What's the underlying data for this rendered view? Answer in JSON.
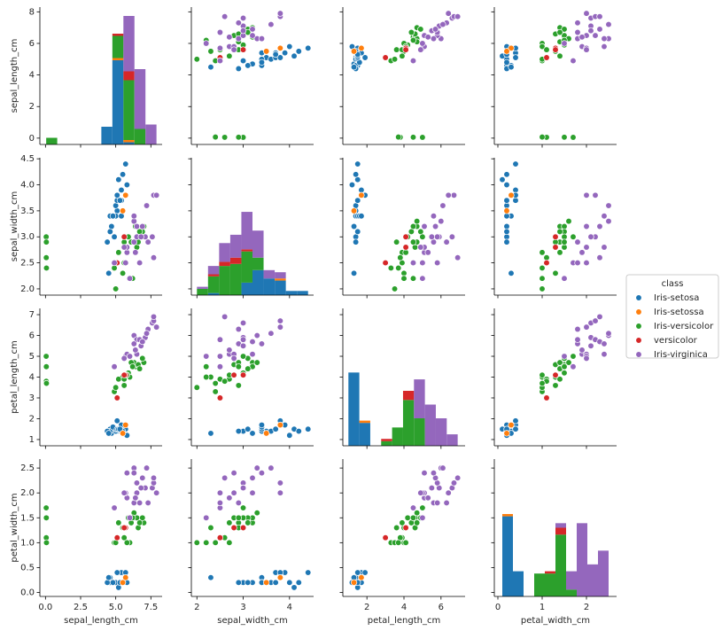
{
  "chart_data": {
    "type": "pairplot",
    "legend_title": "class",
    "legend": "right",
    "axes": [
      {
        "label": "sepal_length_cm",
        "lim": [
          -0.4,
          8.3
        ],
        "xticks": [
          {
            "value": 0,
            "label": "0.0"
          },
          2.5,
          {
            "value": 5,
            "label": "5.0"
          },
          7.5
        ],
        "yticks": [
          0,
          2,
          4,
          6,
          8
        ]
      },
      {
        "label": "sepal_width_cm",
        "lim": [
          1.88,
          4.52
        ],
        "xticks": [
          2,
          3,
          4
        ],
        "yticks": [
          {
            "value": 2,
            "label": "2.0"
          },
          2.5,
          {
            "value": 3,
            "label": "3.0"
          },
          3.5,
          {
            "value": 4,
            "label": "4.0"
          },
          4.5
        ]
      },
      {
        "label": "petal_length_cm",
        "lim": [
          0.7,
          7.3
        ],
        "xticks": [
          2,
          4,
          6
        ],
        "yticks": [
          1,
          2,
          3,
          4,
          5,
          6,
          7
        ]
      },
      {
        "label": "petal_width_cm",
        "lim": [
          -0.08,
          2.68
        ],
        "xticks": [
          0,
          1,
          2
        ],
        "yticks": [
          {
            "value": 0,
            "label": "0.0"
          },
          0.5,
          {
            "value": 1,
            "label": "1.0"
          },
          1.5,
          {
            "value": 2,
            "label": "2.0"
          },
          2.5
        ]
      }
    ],
    "hist_bins": [
      [
        0.05,
        0.835,
        1.62,
        2.405,
        3.19,
        3.975,
        4.76,
        5.545,
        6.33,
        7.115,
        7.9
      ],
      [
        2.0,
        2.24,
        2.48,
        2.72,
        2.96,
        3.2,
        3.44,
        3.68,
        3.92,
        4.16,
        4.4
      ],
      [
        1.0,
        1.59,
        2.18,
        2.77,
        3.36,
        3.95,
        4.54,
        5.13,
        5.72,
        6.31,
        6.9
      ],
      [
        0.1,
        0.34,
        0.58,
        0.82,
        1.06,
        1.3,
        1.54,
        1.78,
        2.02,
        2.26,
        2.5
      ]
    ],
    "hist_count_lims": [
      [
        0,
        62
      ],
      [
        0,
        66
      ],
      [
        0,
        60
      ],
      [
        0,
        60
      ]
    ],
    "series": [
      {
        "name": "Iris-setosa",
        "color": "#1f77b4",
        "hist": [
          [
            0,
            0,
            0,
            0,
            0,
            8,
            38,
            1,
            0,
            0
          ],
          [
            0,
            1,
            0,
            0,
            6,
            12,
            8,
            7,
            2,
            2
          ],
          [
            32,
            10,
            0,
            0,
            0,
            0,
            0,
            0,
            0,
            0
          ],
          [
            35,
            11,
            0,
            0,
            0,
            0,
            0,
            0,
            0,
            0
          ]
        ],
        "points": [
          [
            5.1,
            3.5,
            1.4,
            0.2
          ],
          [
            4.9,
            3.0,
            1.4,
            0.2
          ],
          [
            4.7,
            3.2,
            1.3,
            0.2
          ],
          [
            4.6,
            3.1,
            1.5,
            0.2
          ],
          [
            5.0,
            3.6,
            1.4,
            0.2
          ],
          [
            5.4,
            3.9,
            1.7,
            0.4
          ],
          [
            4.6,
            3.4,
            1.4,
            0.3
          ],
          [
            5.0,
            3.4,
            1.5,
            0.2
          ],
          [
            4.4,
            2.9,
            1.4,
            0.2
          ],
          [
            5.4,
            3.7,
            1.5,
            0.2
          ],
          [
            4.8,
            3.4,
            1.6,
            0.2
          ],
          [
            5.8,
            4.0,
            1.2,
            0.2
          ],
          [
            5.7,
            4.4,
            1.5,
            0.4
          ],
          [
            5.4,
            3.4,
            1.7,
            0.2
          ],
          [
            5.1,
            3.7,
            1.5,
            0.4
          ],
          [
            5.2,
            4.1,
            1.5,
            0.1
          ],
          [
            5.5,
            4.2,
            1.4,
            0.2
          ],
          [
            4.5,
            2.3,
            1.3,
            0.3
          ],
          [
            5.1,
            3.8,
            1.9,
            0.4
          ],
          [
            5.3,
            3.7,
            1.5,
            0.2
          ]
        ]
      },
      {
        "name": "Iris-setossa",
        "color": "#ff7f0e",
        "hist": [
          [
            0,
            0,
            0,
            0,
            0,
            0,
            1,
            1,
            0,
            0
          ],
          [
            0,
            0,
            0,
            0,
            0,
            0,
            0,
            1,
            0,
            0
          ],
          [
            0,
            1,
            0,
            0,
            0,
            0,
            0,
            0,
            0,
            0
          ],
          [
            1,
            0,
            0,
            0,
            0,
            0,
            0,
            0,
            0,
            0
          ]
        ],
        "points": [
          [
            5.7,
            3.8,
            1.7,
            0.3
          ],
          [
            5.5,
            3.5,
            1.3,
            0.2
          ]
        ]
      },
      {
        "name": "Iris-versicolor",
        "color": "#2ca02c",
        "hist": [
          [
            3,
            0,
            0,
            0,
            0,
            0,
            10,
            27,
            7,
            0
          ],
          [
            3,
            8,
            14,
            15,
            15,
            6,
            0,
            0,
            0,
            0
          ],
          [
            0,
            0,
            0,
            2,
            8,
            20,
            12,
            0,
            0,
            0
          ],
          [
            0,
            0,
            0,
            10,
            10,
            27,
            3,
            0,
            0,
            0
          ]
        ],
        "points": [
          [
            7.0,
            3.2,
            4.7,
            1.4
          ],
          [
            6.4,
            3.2,
            4.5,
            1.5
          ],
          [
            6.9,
            3.1,
            4.9,
            1.5
          ],
          [
            5.5,
            2.3,
            4.0,
            1.3
          ],
          [
            6.5,
            2.8,
            4.6,
            1.5
          ],
          [
            6.3,
            3.3,
            4.7,
            1.6
          ],
          [
            4.9,
            2.4,
            3.3,
            1.0
          ],
          [
            6.6,
            2.9,
            4.6,
            1.3
          ],
          [
            5.2,
            2.7,
            3.9,
            1.4
          ],
          [
            5.0,
            2.0,
            3.5,
            1.0
          ],
          [
            5.9,
            3.0,
            4.2,
            1.5
          ],
          [
            6.0,
            2.2,
            4.0,
            1.0
          ],
          [
            6.1,
            2.9,
            4.7,
            1.4
          ],
          [
            5.6,
            2.9,
            3.6,
            1.3
          ],
          [
            6.7,
            3.1,
            4.4,
            1.4
          ],
          [
            5.8,
            2.7,
            4.1,
            1.0
          ],
          [
            6.2,
            2.2,
            4.5,
            1.5
          ],
          [
            5.6,
            2.5,
            3.9,
            1.1
          ],
          [
            0.05,
            3.0,
            5.0,
            1.7
          ],
          [
            0.06,
            2.9,
            4.5,
            1.5
          ],
          [
            0.055,
            2.6,
            3.8,
            1.1
          ],
          [
            0.07,
            2.4,
            3.7,
            1.0
          ]
        ]
      },
      {
        "name": "versicolor",
        "color": "#d62728",
        "hist": [
          [
            0,
            0,
            0,
            0,
            0,
            0,
            1,
            4,
            0,
            0
          ],
          [
            0,
            1,
            2,
            3,
            1,
            0,
            0,
            0,
            0,
            0
          ],
          [
            0,
            0,
            0,
            1,
            0,
            4,
            0,
            0,
            0,
            0
          ],
          [
            0,
            0,
            0,
            0,
            1,
            3,
            0,
            0,
            0,
            0
          ]
        ],
        "points": [
          [
            5.7,
            2.8,
            4.1,
            1.3
          ],
          [
            5.6,
            3.0,
            4.1,
            1.3
          ],
          [
            5.1,
            2.5,
            3.0,
            1.1
          ]
        ]
      },
      {
        "name": "Iris-virginica",
        "color": "#9467bd",
        "hist": [
          [
            0,
            0,
            0,
            0,
            0,
            0,
            0,
            25,
            27,
            9
          ],
          [
            1,
            4,
            9,
            11,
            18,
            13,
            4,
            3,
            0,
            0
          ],
          [
            0,
            0,
            0,
            0,
            0,
            0,
            17,
            18,
            12,
            5
          ],
          [
            0,
            0,
            0,
            0,
            0,
            2,
            8,
            32,
            14,
            20
          ]
        ],
        "points": [
          [
            6.3,
            3.3,
            6.0,
            2.5
          ],
          [
            5.8,
            2.7,
            5.1,
            1.9
          ],
          [
            7.1,
            3.0,
            5.9,
            2.1
          ],
          [
            6.3,
            2.9,
            5.6,
            1.8
          ],
          [
            6.5,
            3.0,
            5.8,
            2.2
          ],
          [
            7.6,
            3.0,
            6.6,
            2.1
          ],
          [
            4.9,
            2.5,
            4.5,
            1.7
          ],
          [
            7.3,
            2.9,
            6.3,
            1.8
          ],
          [
            6.7,
            2.5,
            5.8,
            1.8
          ],
          [
            7.2,
            3.6,
            6.1,
            2.5
          ],
          [
            6.5,
            3.2,
            5.1,
            2.0
          ],
          [
            6.4,
            2.7,
            5.3,
            1.9
          ],
          [
            6.8,
            3.0,
            5.5,
            2.1
          ],
          [
            5.7,
            2.5,
            5.0,
            2.0
          ],
          [
            5.8,
            2.8,
            5.1,
            2.4
          ],
          [
            7.7,
            3.8,
            6.7,
            2.2
          ],
          [
            7.7,
            2.6,
            6.9,
            2.3
          ],
          [
            6.0,
            2.2,
            5.0,
            1.5
          ],
          [
            6.9,
            3.2,
            5.7,
            2.3
          ],
          [
            5.6,
            2.8,
            4.9,
            2.0
          ],
          [
            7.9,
            3.8,
            6.4,
            2.0
          ],
          [
            6.3,
            3.4,
            5.6,
            2.4
          ]
        ]
      }
    ]
  }
}
